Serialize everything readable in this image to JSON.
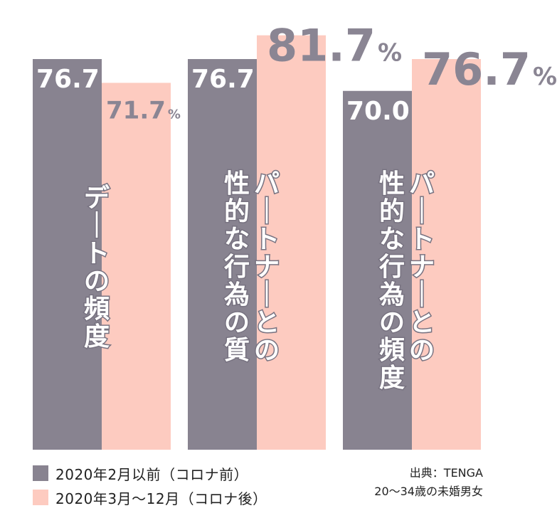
{
  "chart_data": {
    "type": "bar",
    "categories": [
      "デートの頻度",
      "パートナーとの性的な行為の質",
      "パートナーとの性的な行為の頻度"
    ],
    "category_lines": [
      [
        "デートの頻度"
      ],
      [
        "性的な行為の質",
        "パートナーとの"
      ],
      [
        "性的な行為の頻度",
        "パートナーとの"
      ]
    ],
    "series": [
      {
        "name": "2020年2月以前（コロナ前）",
        "values": [
          76.7,
          76.7,
          70.0
        ],
        "color": "#888390",
        "labels": [
          "76.7",
          "76.7",
          "70.0"
        ]
      },
      {
        "name": "2020年3月～12月（コロナ後）",
        "values": [
          71.7,
          81.7,
          76.7
        ],
        "color": "#fdcbc0",
        "labels": [
          "71.7",
          "81.7",
          "76.7"
        ]
      }
    ],
    "unit": "%",
    "ylim": [
      40,
      82
    ]
  },
  "legend": {
    "before": "2020年2月以前（コロナ前）",
    "after": "2020年3月～12月（コロナ後）"
  },
  "source": {
    "line1": "出典：TENGA",
    "line2": "20～34歳の未婚男女"
  }
}
